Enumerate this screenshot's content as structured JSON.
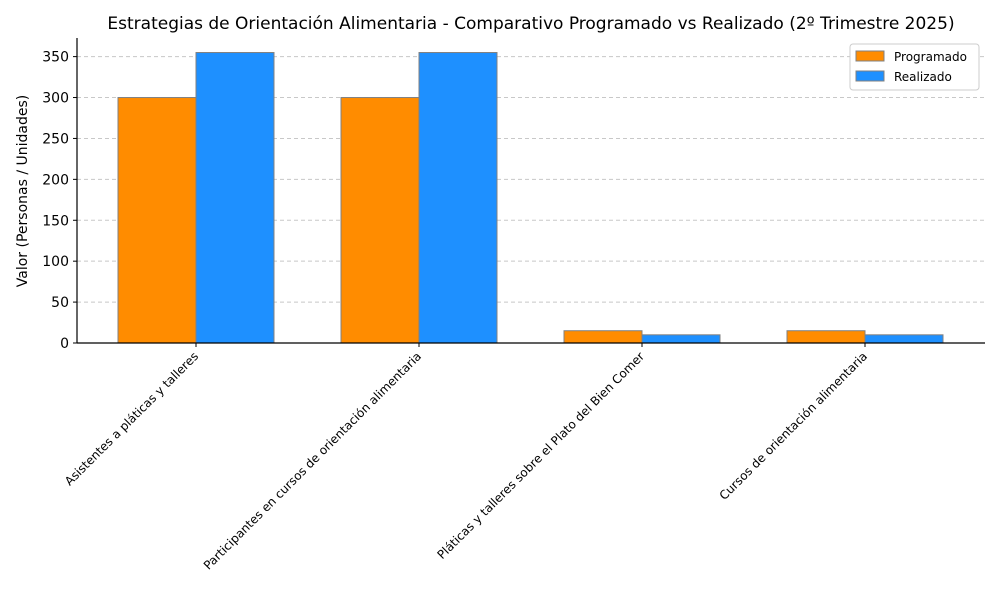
{
  "chart_data": {
    "type": "bar",
    "title": "Estrategias de Orientación Alimentaria - Comparativo Programado vs Realizado (2º Trimestre 2025)",
    "xlabel": "",
    "ylabel": "Valor (Personas / Unidades)",
    "categories": [
      "Asistentes a pláticas y talleres",
      "Participantes en cursos de orientación alimentaria",
      "Pláticas y talleres sobre el Plato del Bien Comer",
      "Cursos de orientación alimentaria"
    ],
    "series": [
      {
        "name": "Programado",
        "values": [
          300,
          300,
          15,
          15
        ],
        "color": "#FF8C00"
      },
      {
        "name": "Realizado",
        "values": [
          355,
          355,
          10,
          10
        ],
        "color": "#1E90FF"
      }
    ],
    "ylim": [
      0,
      372.75
    ],
    "yticks": [
      0,
      50,
      100,
      150,
      200,
      250,
      300,
      350
    ],
    "grid": "y-dashed",
    "legend": "top-right"
  }
}
